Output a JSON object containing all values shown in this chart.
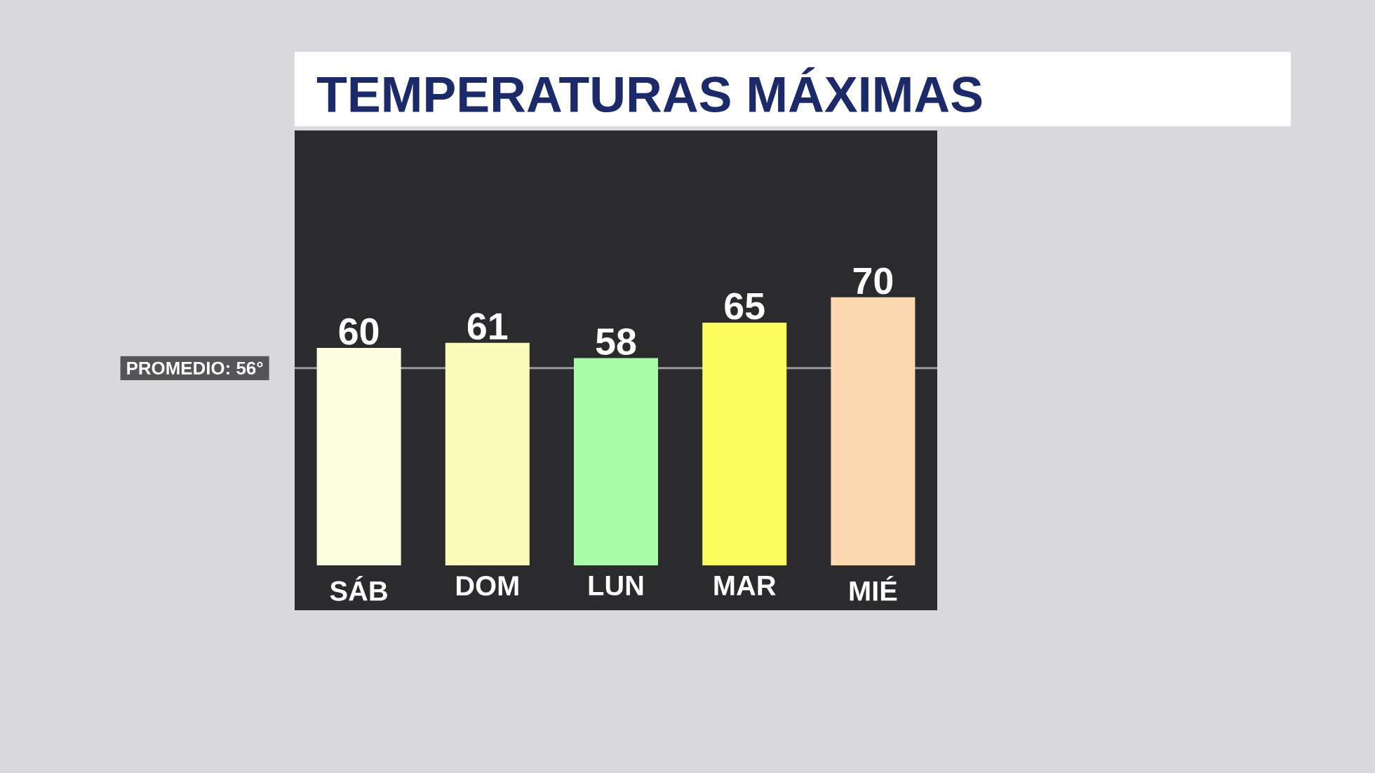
{
  "chart_data": {
    "type": "bar",
    "title": "TEMPERATURAS MÁXIMAS",
    "categories": [
      "SÁB",
      "DOM",
      "LUN",
      "MAR",
      "MIÉ"
    ],
    "values": [
      60,
      61,
      58,
      65,
      70
    ],
    "colors": [
      "#fdfde0",
      "#fdfbb8",
      "#a8fca8",
      "#fcfc60",
      "#fdd9b0"
    ],
    "ylim": [
      17,
      103
    ],
    "tick_labels": "x",
    "data_labels": true,
    "ref_lines": [
      {
        "axis": "y",
        "value": 56,
        "label": "PROMEDIO: 56°",
        "color": "#9a9a9a"
      }
    ]
  }
}
